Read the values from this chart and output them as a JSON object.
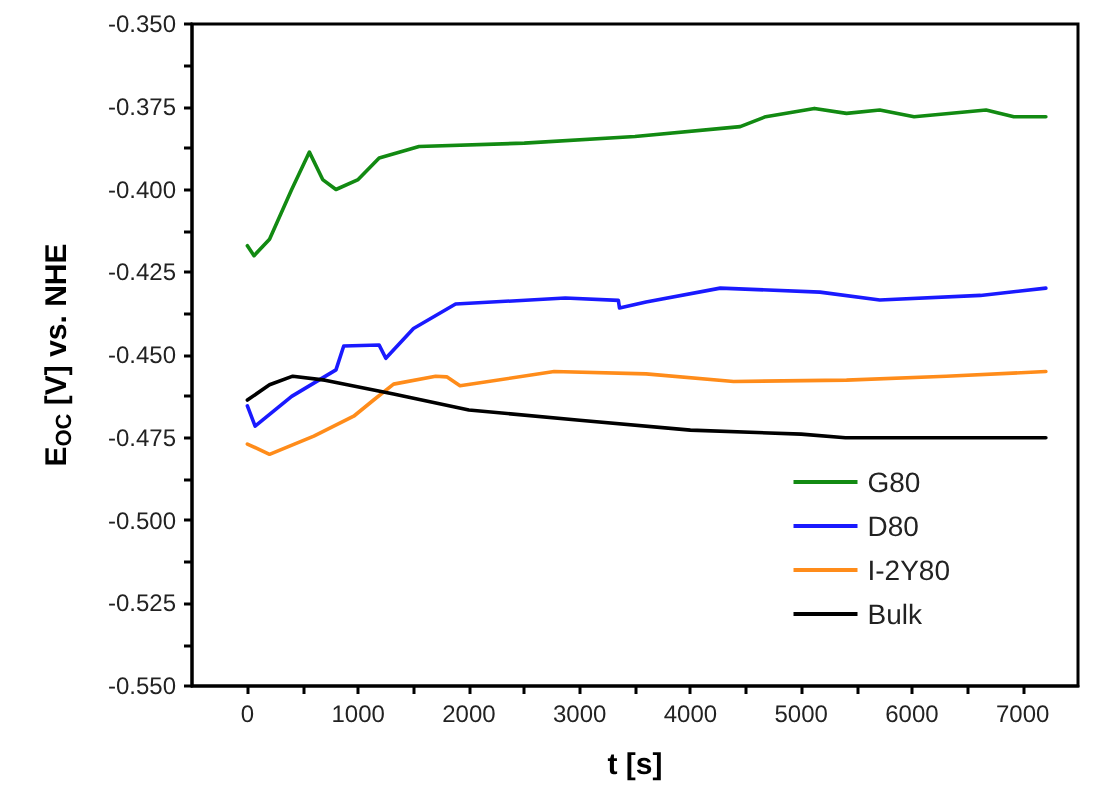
{
  "chart_data": {
    "type": "line",
    "xlabel": "t [s]",
    "ylabel": "E$_{OC}$ [V] vs. NHE",
    "xlim": [
      -500,
      7500
    ],
    "xticks": [
      0,
      {
        "value": 500,
        "label": null
      },
      1000,
      {
        "value": 1500,
        "label": null
      },
      2000,
      {
        "value": 2500,
        "label": null
      },
      3000,
      {
        "value": 3500,
        "label": null
      },
      4000,
      {
        "value": 4500,
        "label": null
      },
      5000,
      {
        "value": 5500,
        "label": null
      },
      6000,
      {
        "value": 6500,
        "label": null
      },
      7000
    ],
    "ylim": [
      -0.55,
      -0.35
    ],
    "yticks": [
      {
        "value": -0.55,
        "label": "-0.550"
      },
      {
        "value": -0.5375,
        "label": null
      },
      {
        "value": -0.525,
        "label": "-0.525"
      },
      {
        "value": -0.5125,
        "label": null
      },
      {
        "value": -0.5,
        "label": "-0.500"
      },
      {
        "value": -0.4875,
        "label": null
      },
      {
        "value": -0.475,
        "label": "-0.475"
      },
      {
        "value": -0.4625,
        "label": null
      },
      {
        "value": -0.45,
        "label": "-0.450"
      },
      {
        "value": -0.4375,
        "label": null
      },
      {
        "value": -0.425,
        "label": "-0.425"
      },
      {
        "value": -0.4125,
        "label": null
      },
      {
        "value": -0.4,
        "label": "-0.400"
      },
      {
        "value": -0.3875,
        "label": null
      },
      {
        "value": -0.375,
        "label": "-0.375"
      },
      {
        "value": -0.3625,
        "label": null
      },
      {
        "value": -0.35,
        "label": "-0.350"
      }
    ],
    "grid": false,
    "legend": "bottom right",
    "marker": "none",
    "line_style": "solid",
    "series": [
      {
        "name": "G80",
        "color": "#128a12",
        "x": [
          0,
          60,
          200,
          400,
          560,
          680,
          800,
          1000,
          1190,
          1550,
          2500,
          3500,
          4450,
          4680,
          5120,
          5410,
          5710,
          6020,
          6670,
          6920,
          7210
        ],
        "values": [
          -0.417,
          -0.42,
          -0.415,
          -0.4,
          -0.3887,
          -0.397,
          -0.4,
          -0.397,
          -0.3905,
          -0.387,
          -0.386,
          -0.384,
          -0.381,
          -0.378,
          -0.3755,
          -0.377,
          -0.376,
          -0.378,
          -0.376,
          -0.378,
          -0.378
        ]
      },
      {
        "name": "D80",
        "color": "#1a1aff",
        "x": [
          0,
          70,
          400,
          800,
          870,
          1190,
          1250,
          1500,
          1880,
          2870,
          3350,
          3360,
          3600,
          4270,
          5170,
          5710,
          6620,
          7210
        ],
        "values": [
          -0.4654,
          -0.4715,
          -0.4625,
          -0.4545,
          -0.4473,
          -0.447,
          -0.451,
          -0.442,
          -0.4346,
          -0.4328,
          -0.4335,
          -0.4358,
          -0.434,
          -0.4298,
          -0.431,
          -0.4334,
          -0.432,
          -0.4298
        ]
      },
      {
        "name": "I-2Y80",
        "color": "#ff8c1a",
        "x": [
          0,
          200,
          600,
          960,
          1140,
          1320,
          1700,
          1800,
          1920,
          2770,
          3600,
          4390,
          5410,
          6310,
          7210
        ],
        "values": [
          -0.4769,
          -0.48,
          -0.4745,
          -0.4685,
          -0.4636,
          -0.4588,
          -0.4564,
          -0.4566,
          -0.4593,
          -0.455,
          -0.4557,
          -0.458,
          -0.4576,
          -0.4564,
          -0.455
        ]
      },
      {
        "name": "Bulk",
        "color": "#000000",
        "x": [
          0,
          200,
          410,
          700,
          1320,
          2000,
          3000,
          4000,
          5000,
          5400,
          7210
        ],
        "values": [
          -0.4636,
          -0.459,
          -0.4564,
          -0.4576,
          -0.4618,
          -0.4666,
          -0.4697,
          -0.4727,
          -0.4739,
          -0.475,
          -0.475
        ]
      }
    ]
  }
}
